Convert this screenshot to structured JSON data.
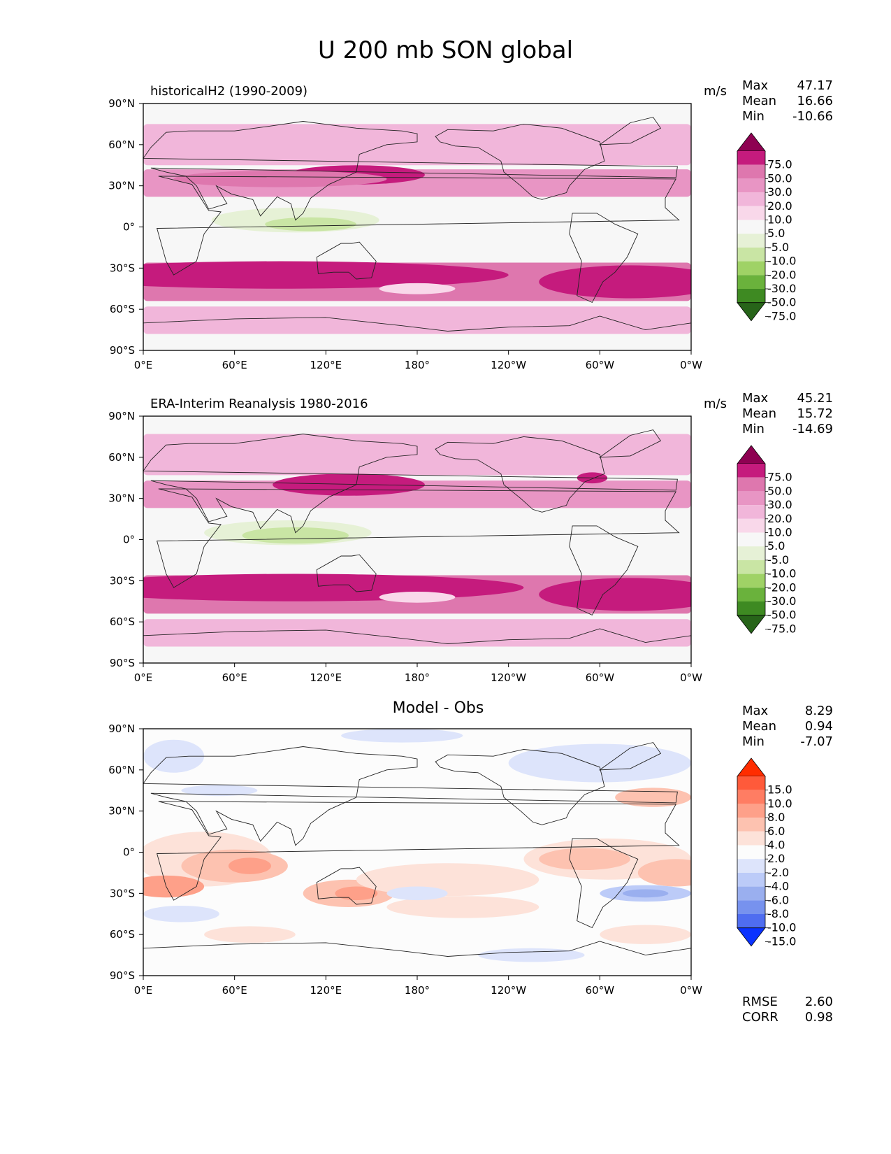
{
  "figure_title": "U 200 mb SON global",
  "chart_data": [
    {
      "type": "heatmap",
      "panel_title": "historicalH2 (1990-2009)",
      "units": "m/s",
      "stats": [
        {
          "label": "Max",
          "value": "47.17"
        },
        {
          "label": "Mean",
          "value": "16.66"
        },
        {
          "label": "Min",
          "value": "-10.66"
        }
      ],
      "colorbar": {
        "levels": [
          "75.0",
          "50.0",
          "30.0",
          "20.0",
          "10.0",
          "5.0",
          "-5.0",
          "-10.0",
          "-20.0",
          "-30.0",
          "-50.0",
          "-75.0"
        ],
        "colors": [
          "#8e0152",
          "#c51b7d",
          "#de77ae",
          "#e895c4",
          "#f1b6da",
          "#f9d8ea",
          "#f7f7f7",
          "#e6f1d6",
          "#c9e5a4",
          "#9fd266",
          "#6ab23c",
          "#3e8a22",
          "#276419"
        ]
      },
      "xticks": [
        "0°E",
        "60°E",
        "120°E",
        "180°",
        "120°W",
        "60°W",
        "0°W"
      ],
      "yticks": [
        "90°N",
        "60°N",
        "30°N",
        "0°",
        "30°S",
        "60°S",
        "90°S"
      ],
      "xlim": [
        0,
        360
      ],
      "ylim": [
        -90,
        90
      ],
      "features": [
        {
          "kind": "band",
          "lat_center": 60,
          "half_width": 15,
          "level": 4
        },
        {
          "kind": "band",
          "lat_center": 32,
          "half_width": 10,
          "level": 3
        },
        {
          "kind": "band",
          "lat_center": -40,
          "half_width": 14,
          "level": 2
        },
        {
          "kind": "band",
          "lat_center": -68,
          "half_width": 10,
          "level": 4
        },
        {
          "kind": "blob",
          "lon": 140,
          "lat": 38,
          "rlon": 45,
          "rlat": 7,
          "level": 1
        },
        {
          "kind": "blob",
          "lon": 90,
          "lat": 35,
          "rlon": 70,
          "rlat": 6,
          "level": 2
        },
        {
          "kind": "blob",
          "lon": 100,
          "lat": 5,
          "rlon": 55,
          "rlat": 9,
          "level": 7
        },
        {
          "kind": "blob",
          "lon": 110,
          "lat": 2,
          "rlon": 30,
          "rlat": 5,
          "level": 8
        },
        {
          "kind": "blob",
          "lon": 90,
          "lat": -35,
          "rlon": 150,
          "rlat": 10,
          "level": 1
        },
        {
          "kind": "blob",
          "lon": 320,
          "lat": -40,
          "rlon": 60,
          "rlat": 12,
          "level": 1
        },
        {
          "kind": "blob",
          "lon": 180,
          "lat": -45,
          "rlon": 25,
          "rlat": 4,
          "level": 5
        }
      ]
    },
    {
      "type": "heatmap",
      "panel_title": "ERA-Interim Reanalysis 1980-2016",
      "units": "m/s",
      "stats": [
        {
          "label": "Max",
          "value": "45.21"
        },
        {
          "label": "Mean",
          "value": "15.72"
        },
        {
          "label": "Min",
          "value": "-14.69"
        }
      ],
      "colorbar": {
        "levels": [
          "75.0",
          "50.0",
          "30.0",
          "20.0",
          "10.0",
          "5.0",
          "-5.0",
          "-10.0",
          "-20.0",
          "-30.0",
          "-50.0",
          "-75.0"
        ],
        "colors": [
          "#8e0152",
          "#c51b7d",
          "#de77ae",
          "#e895c4",
          "#f1b6da",
          "#f9d8ea",
          "#f7f7f7",
          "#e6f1d6",
          "#c9e5a4",
          "#9fd266",
          "#6ab23c",
          "#3e8a22",
          "#276419"
        ]
      },
      "xticks": [
        "0°E",
        "60°E",
        "120°E",
        "180°",
        "120°W",
        "60°W",
        "0°W"
      ],
      "yticks": [
        "90°N",
        "60°N",
        "30°N",
        "0°",
        "30°S",
        "60°S",
        "90°S"
      ],
      "xlim": [
        0,
        360
      ],
      "ylim": [
        -90,
        90
      ],
      "features": [
        {
          "kind": "band",
          "lat_center": 62,
          "half_width": 15,
          "level": 4
        },
        {
          "kind": "band",
          "lat_center": 33,
          "half_width": 10,
          "level": 3
        },
        {
          "kind": "band",
          "lat_center": -40,
          "half_width": 14,
          "level": 2
        },
        {
          "kind": "band",
          "lat_center": -68,
          "half_width": 10,
          "level": 4
        },
        {
          "kind": "blob",
          "lon": 135,
          "lat": 40,
          "rlon": 50,
          "rlat": 8,
          "level": 1
        },
        {
          "kind": "blob",
          "lon": 295,
          "lat": 45,
          "rlon": 10,
          "rlat": 4,
          "level": 1
        },
        {
          "kind": "blob",
          "lon": 95,
          "lat": 5,
          "rlon": 55,
          "rlat": 9,
          "level": 7
        },
        {
          "kind": "blob",
          "lon": 100,
          "lat": 3,
          "rlon": 35,
          "rlat": 6,
          "level": 8
        },
        {
          "kind": "blob",
          "lon": 100,
          "lat": -35,
          "rlon": 150,
          "rlat": 10,
          "level": 1
        },
        {
          "kind": "blob",
          "lon": 320,
          "lat": -40,
          "rlon": 60,
          "rlat": 12,
          "level": 1
        },
        {
          "kind": "blob",
          "lon": 180,
          "lat": -42,
          "rlon": 25,
          "rlat": 4,
          "level": 5
        }
      ]
    },
    {
      "type": "heatmap",
      "panel_title": "Model - Obs",
      "units": "",
      "stats": [
        {
          "label": "Max",
          "value": "8.29"
        },
        {
          "label": "Mean",
          "value": "0.94"
        },
        {
          "label": "Min",
          "value": "-7.07"
        }
      ],
      "extra_stats": [
        {
          "label": "RMSE",
          "value": "2.60"
        },
        {
          "label": "CORR",
          "value": "0.98"
        }
      ],
      "colorbar": {
        "levels": [
          "15.0",
          "10.0",
          "8.0",
          "6.0",
          "4.0",
          "2.0",
          "-2.0",
          "-4.0",
          "-6.0",
          "-8.0",
          "-10.0",
          "-15.0"
        ],
        "colors": [
          "#ff2d00",
          "#ff5a3a",
          "#ff7d63",
          "#fea089",
          "#fdc2b0",
          "#fde2d9",
          "#fcfcfc",
          "#dde4fb",
          "#bccbf8",
          "#9aafef",
          "#7792ee",
          "#4f6df0",
          "#0a32ff"
        ]
      },
      "xticks": [
        "0°E",
        "60°E",
        "120°E",
        "180°",
        "120°W",
        "60°W",
        "0°W"
      ],
      "yticks": [
        "90°N",
        "60°N",
        "30°N",
        "0°",
        "30°S",
        "60°S",
        "90°S"
      ],
      "xlim": [
        0,
        360
      ],
      "ylim": [
        -90,
        90
      ],
      "features": [
        {
          "kind": "blob",
          "lon": 20,
          "lat": 70,
          "rlon": 20,
          "rlat": 12,
          "level": 7
        },
        {
          "kind": "blob",
          "lon": 170,
          "lat": 85,
          "rlon": 40,
          "rlat": 5,
          "level": 7
        },
        {
          "kind": "blob",
          "lon": 300,
          "lat": 65,
          "rlon": 60,
          "rlat": 14,
          "level": 7
        },
        {
          "kind": "blob",
          "lon": 50,
          "lat": 45,
          "rlon": 25,
          "rlat": 4,
          "level": 7
        },
        {
          "kind": "blob",
          "lon": 335,
          "lat": 40,
          "rlon": 25,
          "rlat": 7,
          "level": 4
        },
        {
          "kind": "blob",
          "lon": 40,
          "lat": -5,
          "rlon": 45,
          "rlat": 20,
          "level": 5
        },
        {
          "kind": "blob",
          "lon": 60,
          "lat": -10,
          "rlon": 35,
          "rlat": 12,
          "level": 4
        },
        {
          "kind": "blob",
          "lon": 70,
          "lat": -10,
          "rlon": 14,
          "rlat": 6,
          "level": 3
        },
        {
          "kind": "blob",
          "lon": 15,
          "lat": -25,
          "rlon": 25,
          "rlat": 8,
          "level": 3
        },
        {
          "kind": "blob",
          "lon": 135,
          "lat": -30,
          "rlon": 30,
          "rlat": 10,
          "level": 4
        },
        {
          "kind": "blob",
          "lon": 140,
          "lat": -30,
          "rlon": 14,
          "rlat": 5,
          "level": 3
        },
        {
          "kind": "blob",
          "lon": 200,
          "lat": -20,
          "rlon": 60,
          "rlat": 12,
          "level": 5
        },
        {
          "kind": "blob",
          "lon": 210,
          "lat": -40,
          "rlon": 50,
          "rlat": 8,
          "level": 5
        },
        {
          "kind": "blob",
          "lon": 305,
          "lat": -5,
          "rlon": 55,
          "rlat": 15,
          "level": 5
        },
        {
          "kind": "blob",
          "lon": 290,
          "lat": -5,
          "rlon": 30,
          "rlat": 8,
          "level": 4
        },
        {
          "kind": "blob",
          "lon": 350,
          "lat": -15,
          "rlon": 25,
          "rlat": 10,
          "level": 4
        },
        {
          "kind": "blob",
          "lon": 330,
          "lat": -30,
          "rlon": 30,
          "rlat": 6,
          "level": 8
        },
        {
          "kind": "blob",
          "lon": 330,
          "lat": -30,
          "rlon": 15,
          "rlat": 3,
          "level": 9
        },
        {
          "kind": "blob",
          "lon": 25,
          "lat": -45,
          "rlon": 25,
          "rlat": 6,
          "level": 7
        },
        {
          "kind": "blob",
          "lon": 180,
          "lat": -30,
          "rlon": 20,
          "rlat": 5,
          "level": 7
        },
        {
          "kind": "blob",
          "lon": 255,
          "lat": -75,
          "rlon": 35,
          "rlat": 5,
          "level": 7
        },
        {
          "kind": "blob",
          "lon": 70,
          "lat": -60,
          "rlon": 30,
          "rlat": 6,
          "level": 5
        },
        {
          "kind": "blob",
          "lon": 330,
          "lat": -60,
          "rlon": 30,
          "rlat": 7,
          "level": 5
        }
      ]
    }
  ]
}
